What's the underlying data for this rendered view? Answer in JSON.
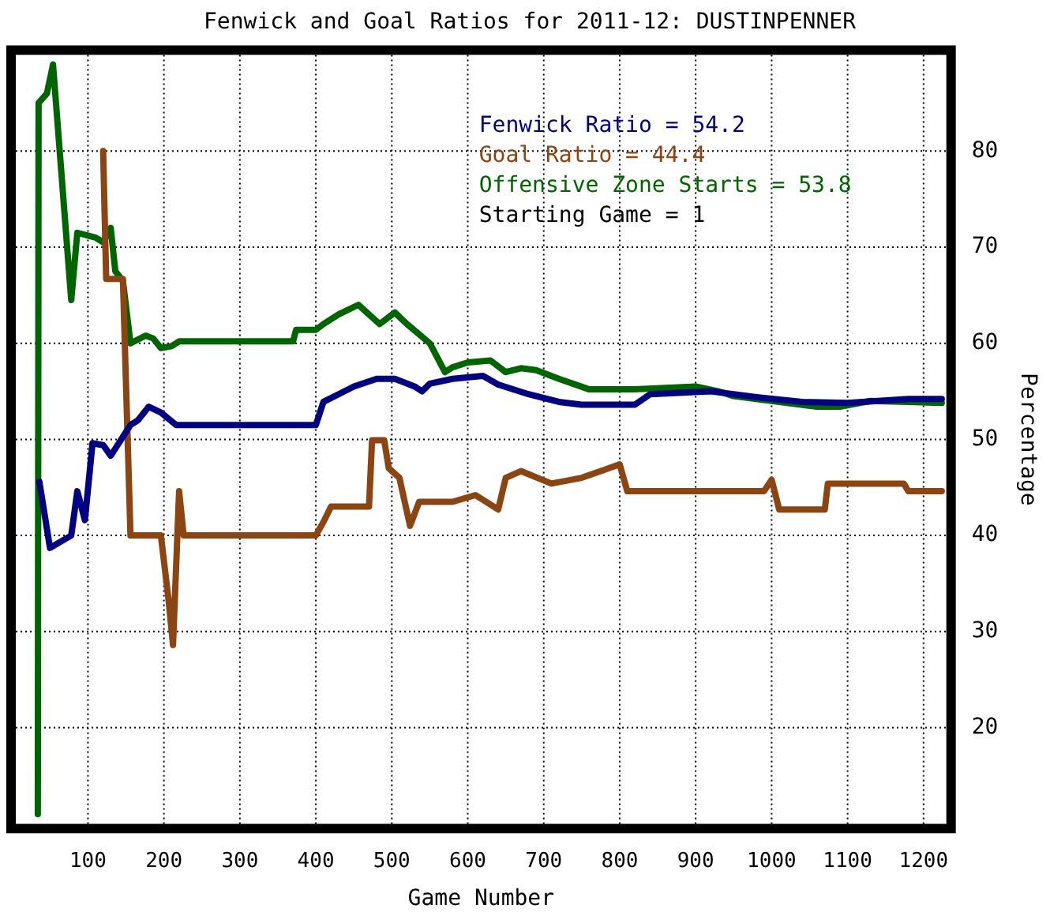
{
  "chart_data": {
    "type": "line",
    "title": "Fenwick and Goal Ratios for 2011-12: DUSTINPENNER",
    "xlabel": "Game Number",
    "ylabel": "Percentage",
    "xlim": [
      5,
      1230
    ],
    "ylim": [
      10,
      90
    ],
    "xticks": [
      100,
      200,
      300,
      400,
      500,
      600,
      700,
      800,
      900,
      1000,
      1100,
      1200
    ],
    "yticks": [
      20,
      30,
      40,
      50,
      60,
      70,
      80
    ],
    "grid": true,
    "legend": "top right",
    "marker": "none",
    "annotations": [
      "Starting Game = 1"
    ],
    "series": [
      {
        "name": "Fenwick Ratio = 54.2",
        "color": "#000080",
        "x": [
          36,
          50,
          78,
          86,
          96,
          106,
          120,
          130,
          156,
          166,
          180,
          196,
          216,
          400,
          410,
          430,
          450,
          480,
          504,
          530,
          540,
          550,
          580,
          620,
          640,
          680,
          720,
          750,
          820,
          840,
          920,
          980,
          1040,
          1100,
          1180,
          1224
        ],
        "values": [
          45.6,
          38.7,
          40,
          44.6,
          41.6,
          49.6,
          49.4,
          48.3,
          51.5,
          52,
          53.4,
          52.8,
          51.5,
          51.5,
          53.9,
          54.7,
          55.5,
          56.3,
          56.3,
          55.5,
          55,
          55.8,
          56.3,
          56.6,
          55.7,
          54.7,
          53.9,
          53.6,
          53.6,
          54.7,
          55,
          54.4,
          53.9,
          53.8,
          54.2,
          54.2
        ]
      },
      {
        "name": "Goal Ratio = 44.4",
        "color": "#8b4513",
        "x": [
          120,
          124,
          146,
          156,
          196,
          206,
          212,
          220,
          226,
          400,
          410,
          420,
          470,
          474,
          490,
          496,
          510,
          524,
          536,
          580,
          610,
          640,
          650,
          670,
          710,
          750,
          800,
          810,
          990,
          1000,
          1010,
          1070,
          1074,
          1174,
          1180,
          1224
        ],
        "values": [
          80,
          66.7,
          66.7,
          40,
          40,
          33.4,
          28.6,
          44.6,
          40,
          40,
          41.4,
          43,
          43,
          49.9,
          49.9,
          47,
          46,
          41,
          43.5,
          43.5,
          44.2,
          42.7,
          46,
          46.7,
          45.4,
          46,
          47.4,
          44.6,
          44.6,
          45.8,
          42.7,
          42.7,
          45.4,
          45.4,
          44.6,
          44.6
        ]
      },
      {
        "name": "Offensive Zone Starts = 53.8",
        "color": "#006400",
        "x": [
          34,
          35,
          46,
          54,
          78,
          86,
          110,
          120,
          130,
          136,
          146,
          156,
          176,
          186,
          196,
          210,
          220,
          370,
          374,
          400,
          410,
          430,
          456,
          470,
          484,
          504,
          520,
          550,
          570,
          580,
          600,
          630,
          650,
          670,
          690,
          720,
          760,
          820,
          900,
          930,
          950,
          980,
          1060,
          1090,
          1130,
          1180,
          1224
        ],
        "values": [
          11,
          85,
          86,
          89,
          64.5,
          71.5,
          71,
          70.5,
          72,
          67.5,
          66.5,
          60,
          60.8,
          60.5,
          59.5,
          59.7,
          60.2,
          60.2,
          61.4,
          61.4,
          62,
          63,
          64,
          63,
          62,
          63.2,
          62,
          60,
          57,
          57.5,
          58,
          58.2,
          57,
          57.4,
          57.2,
          56.3,
          55.2,
          55.2,
          55.5,
          55,
          54.5,
          54.2,
          53.4,
          53.4,
          54,
          53.9,
          53.8
        ]
      }
    ]
  }
}
